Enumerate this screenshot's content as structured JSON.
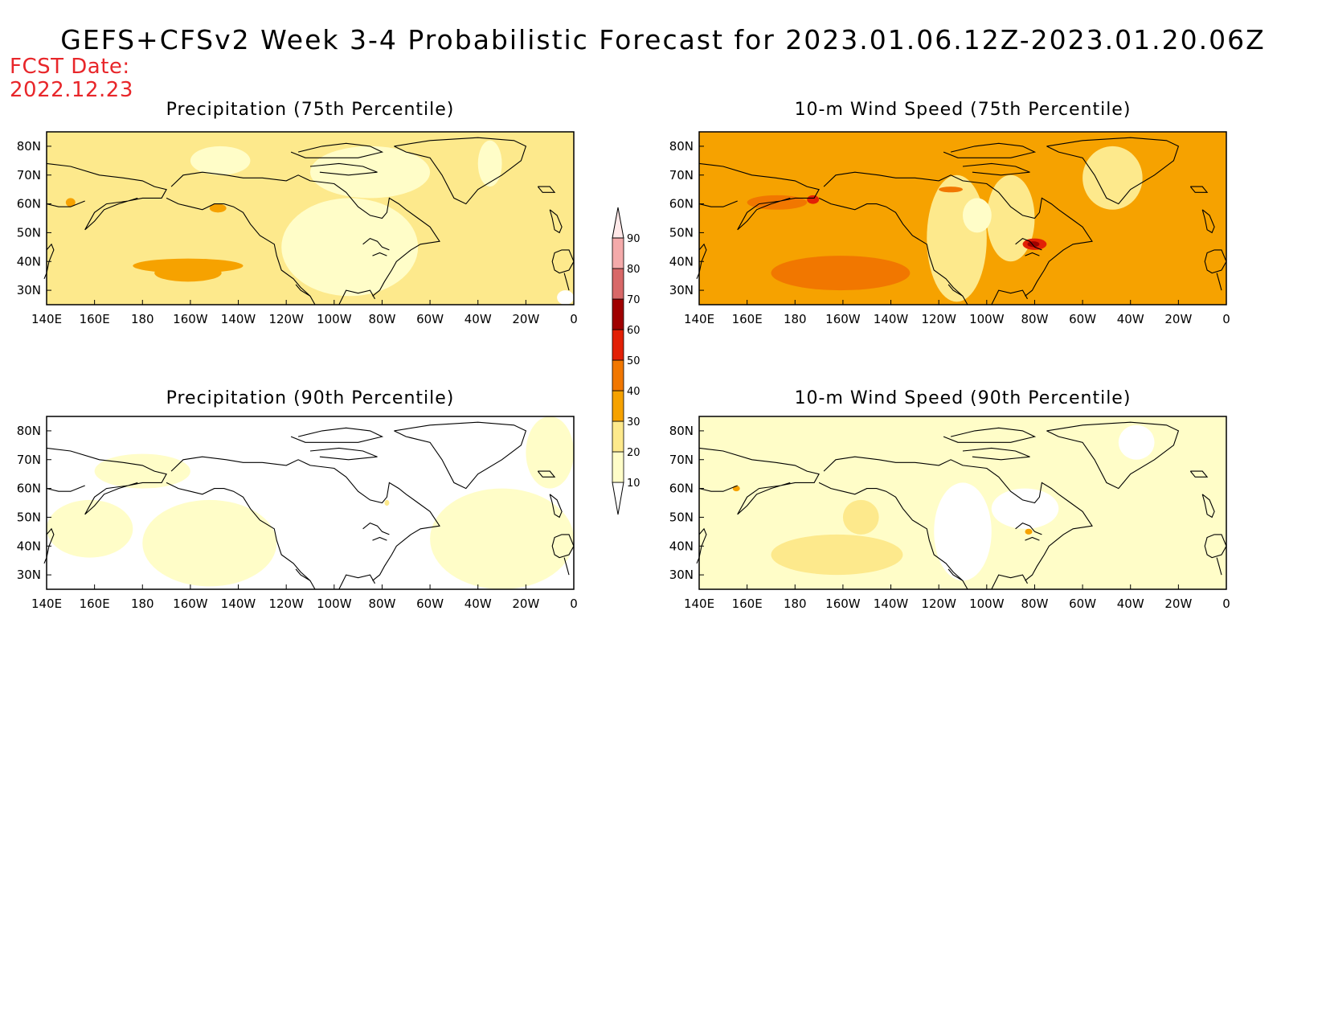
{
  "title": "GEFS+CFSv2 Week 3-4 Probabilistic Forecast for 2023.01.06.12Z-2023.01.20.06Z",
  "fcst_date_label": "FCST Date:",
  "fcst_date_value": "2022.12.23",
  "lon_ticks": [
    "140E",
    "160E",
    "180",
    "160W",
    "140W",
    "120W",
    "100W",
    "80W",
    "60W",
    "40W",
    "20W",
    "0"
  ],
  "lat_ticks": [
    "80N",
    "70N",
    "60N",
    "50N",
    "40N",
    "30N"
  ],
  "map_extent": {
    "lon": [
      140,
      360
    ],
    "lat": [
      25,
      85
    ]
  },
  "colorbar": {
    "levels": [
      "10",
      "20",
      "30",
      "40",
      "50",
      "60",
      "70",
      "80",
      "90"
    ],
    "colors": [
      "#fffdc8",
      "#fde98c",
      "#f6a200",
      "#f17700",
      "#e22006",
      "#a00000",
      "#d86868",
      "#f4aaaa",
      "#ffe8e8"
    ]
  },
  "panels": [
    {
      "id": "precip-75",
      "title": "Precipitation (75th Percentile)",
      "background": "#fde98c",
      "patches": [
        {
          "color": "#fffdc8",
          "lon": [
            200,
            225
          ],
          "lat": [
            70,
            80
          ]
        },
        {
          "color": "#fffdc8",
          "lon": [
            238,
            295
          ],
          "lat": [
            28,
            62
          ]
        },
        {
          "color": "#fffdc8",
          "lon": [
            320,
            330
          ],
          "lat": [
            66,
            82
          ]
        },
        {
          "color": "#fffdc8",
          "lon": [
            250,
            300
          ],
          "lat": [
            62,
            80
          ]
        },
        {
          "color": "#f6a200",
          "lon": [
            176,
            222
          ],
          "lat": [
            36,
            41
          ]
        },
        {
          "color": "#f6a200",
          "lon": [
            185,
            213
          ],
          "lat": [
            33,
            39
          ]
        },
        {
          "color": "#f6a200",
          "lon": [
            148,
            152
          ],
          "lat": [
            59,
            62
          ]
        },
        {
          "color": "#f6a200",
          "lon": [
            208,
            215
          ],
          "lat": [
            57,
            60
          ]
        },
        {
          "color": "#ffffff",
          "lon": [
            353,
            360
          ],
          "lat": [
            25,
            30
          ]
        }
      ]
    },
    {
      "id": "wind-75",
      "title": "10-m Wind Speed (75th Percentile)",
      "background": "#f6a200",
      "patches": [
        {
          "color": "#f17700",
          "lon": [
            170,
            228
          ],
          "lat": [
            30,
            42
          ]
        },
        {
          "color": "#fde98c",
          "lon": [
            235,
            260
          ],
          "lat": [
            26,
            70
          ]
        },
        {
          "color": "#fde98c",
          "lon": [
            260,
            280
          ],
          "lat": [
            40,
            70
          ]
        },
        {
          "color": "#fde98c",
          "lon": [
            300,
            325
          ],
          "lat": [
            58,
            80
          ]
        },
        {
          "color": "#fffdc8",
          "lon": [
            250,
            262
          ],
          "lat": [
            50,
            62
          ]
        },
        {
          "color": "#f17700",
          "lon": [
            160,
            185
          ],
          "lat": [
            58,
            63
          ]
        },
        {
          "color": "#e22006",
          "lon": [
            185,
            190
          ],
          "lat": [
            60,
            63
          ]
        },
        {
          "color": "#e22006",
          "lon": [
            275,
            285
          ],
          "lat": [
            44,
            48
          ]
        },
        {
          "color": "#a00000",
          "lon": [
            277,
            282
          ],
          "lat": [
            45,
            47
          ]
        },
        {
          "color": "#f17700",
          "lon": [
            240,
            250
          ],
          "lat": [
            64,
            66
          ]
        }
      ]
    },
    {
      "id": "precip-90",
      "title": "Precipitation (90th Percentile)",
      "background": "#ffffff",
      "patches": [
        {
          "color": "#fffdc8",
          "lon": [
            180,
            236
          ],
          "lat": [
            26,
            56
          ]
        },
        {
          "color": "#fffdc8",
          "lon": [
            140,
            176
          ],
          "lat": [
            36,
            56
          ]
        },
        {
          "color": "#fffdc8",
          "lon": [
            300,
            360
          ],
          "lat": [
            25,
            60
          ]
        },
        {
          "color": "#fffdc8",
          "lon": [
            160,
            200
          ],
          "lat": [
            60,
            72
          ]
        },
        {
          "color": "#fffdc8",
          "lon": [
            340,
            360
          ],
          "lat": [
            60,
            85
          ]
        },
        {
          "color": "#fde98c",
          "lon": [
            281,
            283
          ],
          "lat": [
            54,
            56
          ]
        }
      ]
    },
    {
      "id": "wind-90",
      "title": "10-m Wind Speed (90th Percentile)",
      "background": "#fffdc8",
      "patches": [
        {
          "color": "#fde98c",
          "lon": [
            170,
            225
          ],
          "lat": [
            30,
            44
          ]
        },
        {
          "color": "#fde98c",
          "lon": [
            200,
            215
          ],
          "lat": [
            44,
            56
          ]
        },
        {
          "color": "#ffffff",
          "lon": [
            238,
            262
          ],
          "lat": [
            28,
            62
          ]
        },
        {
          "color": "#ffffff",
          "lon": [
            262,
            290
          ],
          "lat": [
            46,
            60
          ]
        },
        {
          "color": "#ffffff",
          "lon": [
            315,
            330
          ],
          "lat": [
            70,
            82
          ]
        },
        {
          "color": "#f6a200",
          "lon": [
            276,
            279
          ],
          "lat": [
            44,
            46
          ]
        },
        {
          "color": "#f6a200",
          "lon": [
            154,
            157
          ],
          "lat": [
            59,
            61
          ]
        }
      ]
    }
  ]
}
